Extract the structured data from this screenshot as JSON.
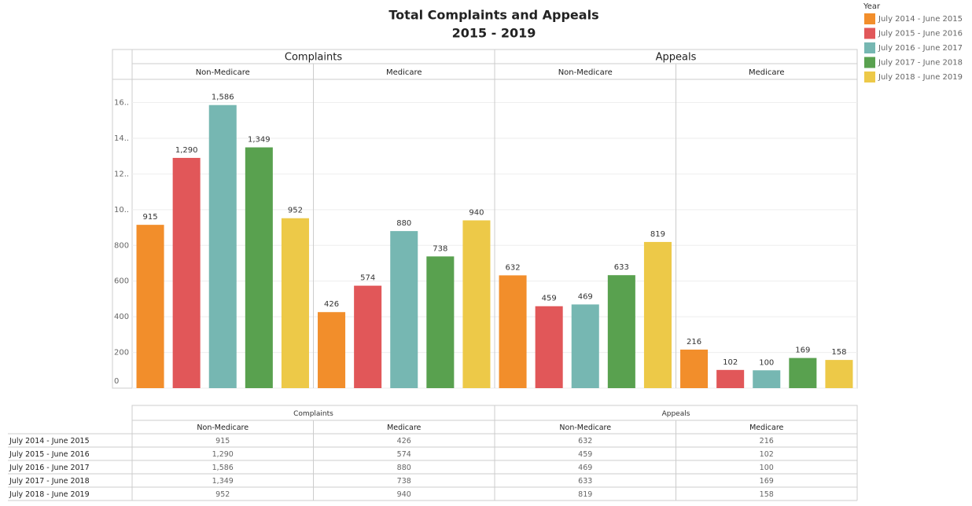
{
  "chart_data": {
    "type": "bar",
    "title": "Total Complaints and Appeals",
    "subtitle": "2015 - 2019",
    "groups": [
      "Complaints",
      "Appeals"
    ],
    "categories": [
      "Non-Medicare",
      "Medicare",
      "Non-Medicare",
      "Medicare"
    ],
    "legend_title": "Year",
    "legend": "top-right",
    "grid": true,
    "ylim": [
      0,
      1730
    ],
    "yticks": [
      0,
      200,
      400,
      600,
      800,
      {
        "value": 1000,
        "label": "10.."
      },
      {
        "value": 1200,
        "label": "12.."
      },
      {
        "value": 1400,
        "label": "14.."
      },
      {
        "value": 1600,
        "label": "16.."
      }
    ],
    "series": [
      {
        "name": "July 2014 - June 2015",
        "color": "#f28e2b",
        "values": [
          915,
          426,
          632,
          216
        ],
        "value_labels": [
          "915",
          "426",
          "632",
          "216"
        ]
      },
      {
        "name": "July 2015 - June 2016",
        "color": "#e15759",
        "values": [
          1290,
          574,
          459,
          102
        ],
        "value_labels": [
          "1,290",
          "574",
          "459",
          "102"
        ]
      },
      {
        "name": "July 2016 - June 2017",
        "color": "#76b7b2",
        "values": [
          1586,
          880,
          469,
          100
        ],
        "value_labels": [
          "1,586",
          "880",
          "469",
          "100"
        ]
      },
      {
        "name": "July 2017 - June 2018",
        "color": "#59a14f",
        "values": [
          1349,
          738,
          633,
          169
        ],
        "value_labels": [
          "1,349",
          "738",
          "633",
          "169"
        ]
      },
      {
        "name": "July 2018 - June 2019",
        "color": "#edc948",
        "values": [
          952,
          940,
          819,
          158
        ],
        "value_labels": [
          "952",
          "940",
          "819",
          "158"
        ]
      }
    ]
  },
  "table": {
    "groups": [
      "Complaints",
      "Appeals"
    ],
    "columns": [
      "Non-Medicare",
      "Medicare",
      "Non-Medicare",
      "Medicare"
    ],
    "rows": [
      [
        "July 2014 - June 2015",
        "915",
        "426",
        "632",
        "216"
      ],
      [
        "July 2015 - June 2016",
        "1,290",
        "574",
        "459",
        "102"
      ],
      [
        "July 2016 - June 2017",
        "1,586",
        "880",
        "469",
        "100"
      ],
      [
        "July 2017 - June 2018",
        "1,349",
        "738",
        "633",
        "169"
      ],
      [
        "July 2018 - June 2019",
        "952",
        "940",
        "819",
        "158"
      ]
    ]
  }
}
